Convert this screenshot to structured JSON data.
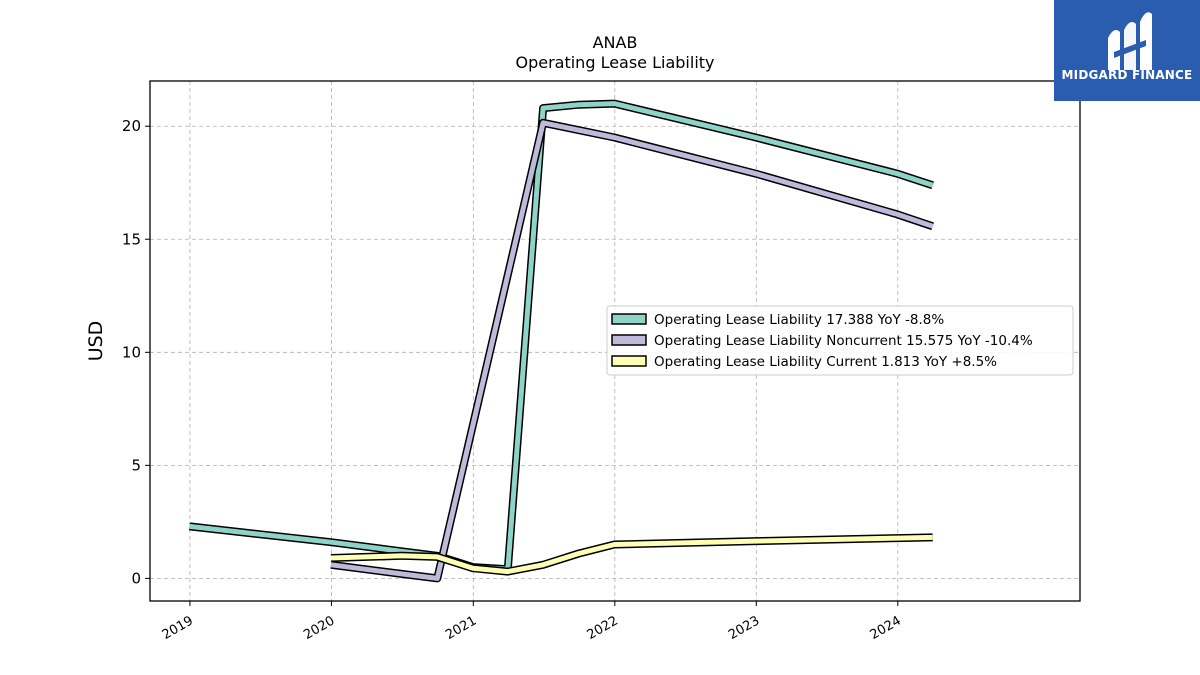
{
  "chart_data": {
    "type": "line",
    "title": "ANAB",
    "subtitle": "Operating Lease Liability",
    "xlabel": "",
    "ylabel": "USD",
    "xlim": [
      "2018-09-20",
      "2025-04-15"
    ],
    "ylim": [
      -1,
      22
    ],
    "x_ticks": [
      "2019",
      "2020",
      "2021",
      "2022",
      "2023",
      "2024"
    ],
    "y_ticks": [
      0,
      5,
      10,
      15,
      20
    ],
    "grid": true,
    "legend_position": "center-right",
    "series": [
      {
        "name": "Operating Lease Liability  17.388 YoY -8.8%",
        "color": "#8dd3c7",
        "x": [
          "2018-12-31",
          "2019-12-31",
          "2020-06-30",
          "2020-09-30",
          "2020-12-31",
          "2021-03-31",
          "2021-06-30",
          "2021-09-30",
          "2021-12-31",
          "2022-12-31",
          "2023-12-31",
          "2024-03-31"
        ],
        "values": [
          2.3,
          1.6,
          1.2,
          1.0,
          0.5,
          0.4,
          20.8,
          20.95,
          21.0,
          19.5,
          17.9,
          17.388
        ]
      },
      {
        "name": "Operating Lease Liability Noncurrent  15.575 YoY -10.4%",
        "color": "#bebada",
        "x": [
          "2019-12-31",
          "2020-06-30",
          "2020-09-30",
          "2021-06-30",
          "2021-12-31",
          "2022-12-31",
          "2023-12-31",
          "2024-03-31"
        ],
        "values": [
          0.6,
          0.2,
          0.0,
          20.15,
          19.5,
          17.9,
          16.1,
          15.575
        ]
      },
      {
        "name": "Operating Lease Liability Current  1.813 YoY +8.5%",
        "color": "#ffffb3",
        "x": [
          "2019-12-31",
          "2020-06-30",
          "2020-09-30",
          "2020-12-31",
          "2021-03-31",
          "2021-06-30",
          "2021-09-30",
          "2021-12-31",
          "2022-12-31",
          "2023-12-31",
          "2024-03-31"
        ],
        "values": [
          0.9,
          1.0,
          0.95,
          0.45,
          0.3,
          0.6,
          1.1,
          1.5,
          1.65,
          1.78,
          1.813
        ]
      }
    ]
  },
  "logo": {
    "text": "MIDGARD FINANCE"
  }
}
